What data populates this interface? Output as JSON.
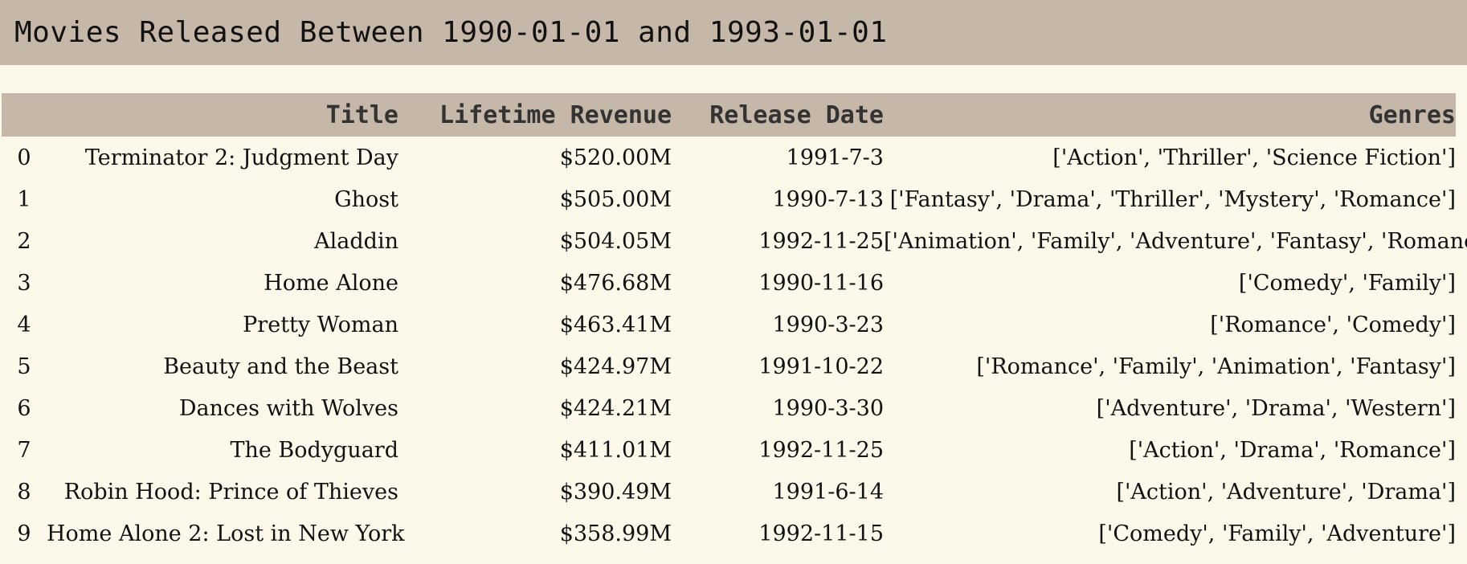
{
  "page_title": "Movies Released Between 1990-01-01 and 1993-01-01",
  "table": {
    "headers": {
      "index": "",
      "title": "Title",
      "revenue": "Lifetime Revenue",
      "date": "Release Date",
      "genres": "Genres"
    },
    "rows": [
      {
        "index": "0",
        "title": "Terminator 2: Judgment Day",
        "revenue": "$520.00M",
        "date": "1991-7-3",
        "genres": "['Action', 'Thriller', 'Science Fiction']"
      },
      {
        "index": "1",
        "title": "Ghost",
        "revenue": "$505.00M",
        "date": "1990-7-13",
        "genres": "['Fantasy', 'Drama', 'Thriller', 'Mystery', 'Romance']"
      },
      {
        "index": "2",
        "title": "Aladdin",
        "revenue": "$504.05M",
        "date": "1992-11-25",
        "genres": "['Animation', 'Family', 'Adventure', 'Fantasy', 'Romance']"
      },
      {
        "index": "3",
        "title": "Home Alone",
        "revenue": "$476.68M",
        "date": "1990-11-16",
        "genres": "['Comedy', 'Family']"
      },
      {
        "index": "4",
        "title": "Pretty Woman",
        "revenue": "$463.41M",
        "date": "1990-3-23",
        "genres": "['Romance', 'Comedy']"
      },
      {
        "index": "5",
        "title": "Beauty and the Beast",
        "revenue": "$424.97M",
        "date": "1991-10-22",
        "genres": "['Romance', 'Family', 'Animation', 'Fantasy']"
      },
      {
        "index": "6",
        "title": "Dances with Wolves",
        "revenue": "$424.21M",
        "date": "1990-3-30",
        "genres": "['Adventure', 'Drama', 'Western']"
      },
      {
        "index": "7",
        "title": "The Bodyguard",
        "revenue": "$411.01M",
        "date": "1992-11-25",
        "genres": "['Action', 'Drama', 'Romance']"
      },
      {
        "index": "8",
        "title": "Robin Hood: Prince of Thieves",
        "revenue": "$390.49M",
        "date": "1991-6-14",
        "genres": "['Action', 'Adventure', 'Drama']"
      },
      {
        "index": "9",
        "title": "Home Alone 2: Lost in New York",
        "revenue": "$358.99M",
        "date": "1992-11-15",
        "genres": "['Comedy', 'Family', 'Adventure']"
      }
    ]
  },
  "colors": {
    "header_bg": "#c6b8a8",
    "page_bg": "#fdf9ea"
  }
}
